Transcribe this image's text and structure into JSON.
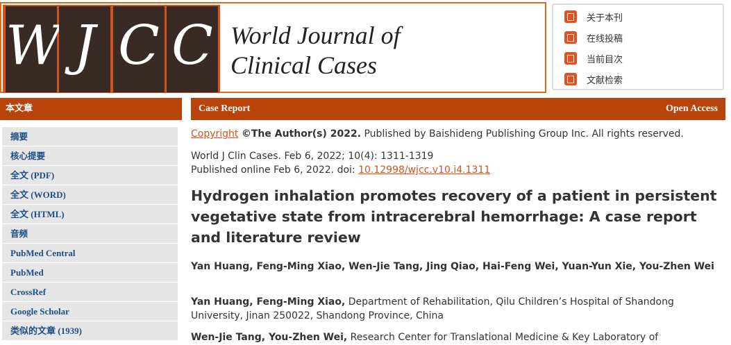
{
  "logo": {
    "letters": [
      "W",
      "J",
      "C",
      "C"
    ],
    "title_line1": "World Journal of",
    "title_line2": "Clinical Cases"
  },
  "top_menu": [
    {
      "label": "关于本刊",
      "icon": "book-icon"
    },
    {
      "label": "在线投稿",
      "icon": "id-card-icon"
    },
    {
      "label": "当前目次",
      "icon": "checklist-icon"
    },
    {
      "label": "文献检索",
      "icon": "document-icon"
    }
  ],
  "sidebar": {
    "header": "本文章",
    "items": [
      "摘要",
      "核心提要",
      "全文 (PDF)",
      "全文 (WORD)",
      "全文 (HTML)",
      "音频",
      "PubMed Central",
      "PubMed",
      "CrossRef",
      "Google Scholar",
      "类似的文章 (1939)"
    ]
  },
  "main": {
    "header_left": "Case Report",
    "header_right": "Open Access",
    "copyright_link": "Copyright",
    "copyright_bold": "©The Author(s) 2022.",
    "copyright_rest": " Published by Baishideng Publishing Group Inc. All rights reserved.",
    "citation": "World J Clin Cases. Feb 6, 2022; 10(4): 1311-1319",
    "published": "Published online Feb 6, 2022. doi: ",
    "doi": "10.12998/wjcc.v10.i4.1311",
    "title": "Hydrogen inhalation promotes recovery of a patient in persistent vegetative state from intracerebral hemorrhage: A case report and literature review",
    "authors": "Yan Huang, Feng-Ming Xiao, Wen-Jie Tang, Jing Qiao, Hai-Feng Wei, Yuan-Yun Xie, You-Zhen Wei",
    "affil1_names": "Yan Huang, Feng-Ming Xiao,",
    "affil1_text": " Department of Rehabilitation, Qilu Children’s Hospital of Shandong University, Jinan 250022, Shandong Province, China",
    "affil2_names": "Wen-Jie Tang, You-Zhen Wei,",
    "affil2_text": " Research Center for Translational Medicine & Key Laboratory of"
  },
  "colors": {
    "accent": "#b8430b",
    "logo_border": "#e06a1c",
    "link": "#d4521b",
    "sidebar_link": "#1c4f86"
  }
}
